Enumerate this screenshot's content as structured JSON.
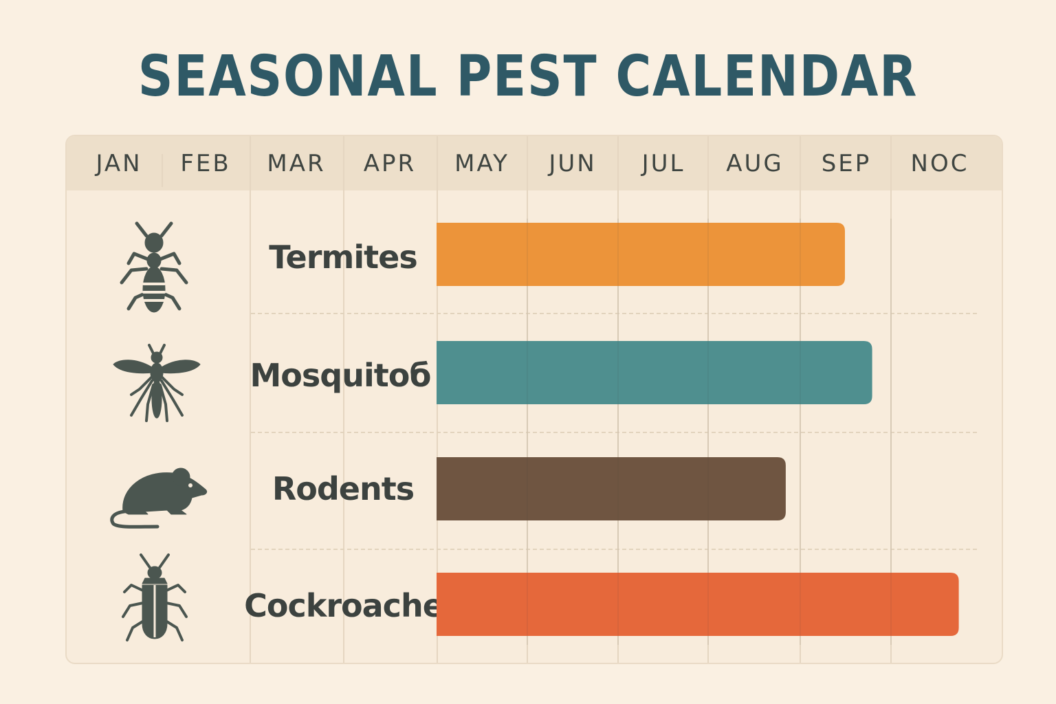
{
  "chart_data": {
    "type": "bar",
    "orientation": "horizontal-timeline",
    "title": "SEASONAL PEST CALENDAR",
    "months": [
      "JAN",
      "FEB",
      "MAR",
      "APR",
      "MAY",
      "JUN",
      "JUL",
      "AUG",
      "SEP",
      "NOC"
    ],
    "grid": true,
    "series": [
      {
        "name": "Termites",
        "icon": "termite-icon",
        "start": 4,
        "end": 8.5,
        "color": "#ec943a"
      },
      {
        "name": "Mosquitoб",
        "icon": "mosquito-icon",
        "start": 4,
        "end": 8.8,
        "color": "#4f8f8f"
      },
      {
        "name": "Rodents",
        "icon": "rodent-icon",
        "start": 4,
        "end": 7.85,
        "color": "#6f5541"
      },
      {
        "name": "Cockroache",
        "icon": "cockroach-icon",
        "start": 4,
        "end": 9.6,
        "color": "#e5683b"
      }
    ]
  },
  "colors": {
    "background": "#faf0e2",
    "title": "#2f5966",
    "icon": "#4b5650"
  }
}
